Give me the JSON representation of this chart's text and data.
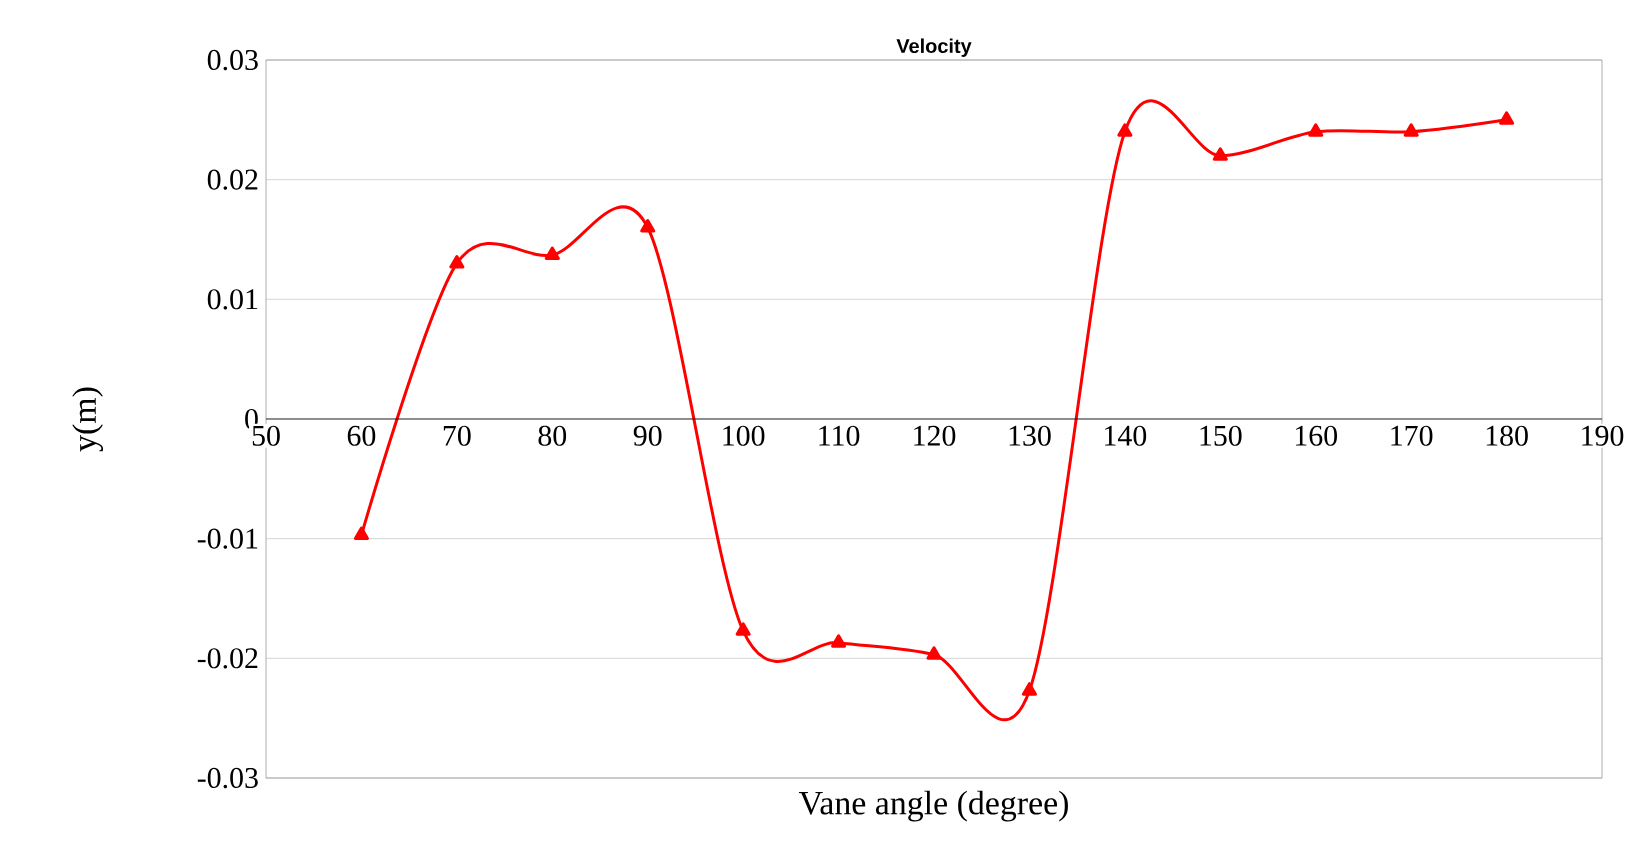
{
  "chart_data": {
    "type": "line",
    "title": "Velocity",
    "xlabel": "Vane angle (degree)",
    "ylabel": "y(m)",
    "x": [
      60,
      70,
      80,
      90,
      100,
      110,
      120,
      130,
      140,
      150,
      160,
      170,
      180
    ],
    "series": [
      {
        "color": "#ff0000",
        "values": [
          -0.0097,
          0.013,
          0.0137,
          0.016,
          -0.0177,
          -0.0187,
          -0.0197,
          -0.0227,
          0.024,
          0.022,
          0.024,
          0.024,
          0.025
        ]
      }
    ],
    "xlim": [
      50,
      190
    ],
    "xticks": [
      50,
      60,
      70,
      80,
      90,
      100,
      110,
      120,
      130,
      140,
      150,
      160,
      170,
      180,
      190
    ],
    "ylim": [
      -0.03,
      0.03
    ],
    "yticks": [
      {
        "value": -0.03,
        "label": "-0.03"
      },
      {
        "value": -0.02,
        "label": "-0.02"
      },
      {
        "value": -0.01,
        "label": "-0.01"
      },
      {
        "value": 0,
        "label": "0"
      },
      {
        "value": 0.01,
        "label": "0.01"
      },
      {
        "value": 0.02,
        "label": "0.02"
      },
      {
        "value": 0.03,
        "label": "0.03"
      }
    ],
    "grid": "y",
    "marker": "triangle",
    "line_style": "solid"
  }
}
